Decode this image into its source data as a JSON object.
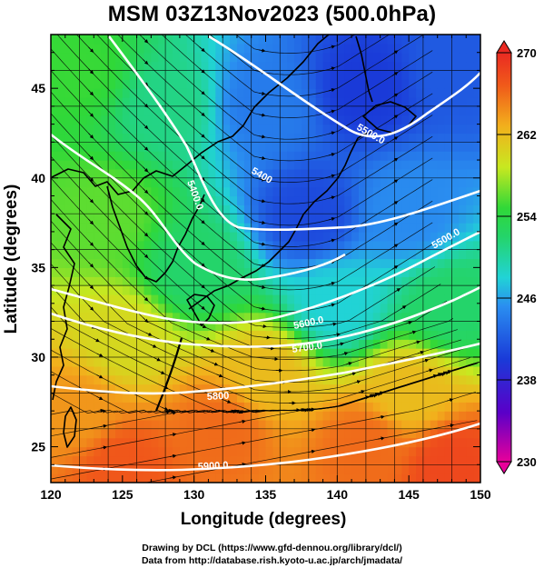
{
  "title": "MSM 03Z13Nov2023 (500.0hPa)",
  "x_axis_label": "Longitude (degrees)",
  "y_axis_label": "Latitude  (degrees)",
  "x_ticks": [
    "120",
    "125",
    "130",
    "135",
    "140",
    "145",
    "150"
  ],
  "y_ticks": [
    "25",
    "30",
    "35",
    "40",
    "45"
  ],
  "colorbar": {
    "ticks": [
      "270",
      "262",
      "254",
      "246",
      "238",
      "230"
    ],
    "min": 230,
    "max": 270
  },
  "contour_labels": [
    "5500.0",
    "5400",
    "5400.0",
    "5500.0",
    "5600.0",
    "5700.0",
    "5800",
    "5900.0"
  ],
  "credits": [
    "Drawing by DCL (https://www.gfd-dennou.org/library/dcl/)",
    "Data from http://database.rish.kyoto-u.ac.jp/arch/jmadata/"
  ],
  "chart_data": {
    "type": "heatmap",
    "field": "temperature (K) with 500 hPa geopotential height contours and wind streamlines",
    "xlim": [
      120,
      150
    ],
    "ylim": [
      23,
      48
    ],
    "color_range": [
      230,
      270
    ],
    "temperature_samples": [
      {
        "lon": 122,
        "lat": 46,
        "value": 255
      },
      {
        "lon": 128,
        "lat": 44,
        "value": 251
      },
      {
        "lon": 135,
        "lat": 44,
        "value": 244
      },
      {
        "lon": 142,
        "lat": 45,
        "value": 240
      },
      {
        "lon": 148,
        "lat": 46,
        "value": 242
      },
      {
        "lon": 138,
        "lat": 38,
        "value": 241
      },
      {
        "lon": 145,
        "lat": 38,
        "value": 245
      },
      {
        "lon": 124,
        "lat": 38,
        "value": 256
      },
      {
        "lon": 130,
        "lat": 35,
        "value": 252
      },
      {
        "lon": 140,
        "lat": 33,
        "value": 248
      },
      {
        "lon": 148,
        "lat": 33,
        "value": 252
      },
      {
        "lon": 125,
        "lat": 31,
        "value": 260
      },
      {
        "lon": 135,
        "lat": 29,
        "value": 262
      },
      {
        "lon": 145,
        "lat": 28,
        "value": 262
      },
      {
        "lon": 122,
        "lat": 27,
        "value": 264
      },
      {
        "lon": 132,
        "lat": 26,
        "value": 266
      },
      {
        "lon": 142,
        "lat": 25,
        "value": 266
      },
      {
        "lon": 148,
        "lat": 24,
        "value": 268
      },
      {
        "lon": 125,
        "lat": 24,
        "value": 267
      }
    ],
    "contour_levels_m": [
      5400,
      5500,
      5600,
      5700,
      5800,
      5900
    ]
  }
}
